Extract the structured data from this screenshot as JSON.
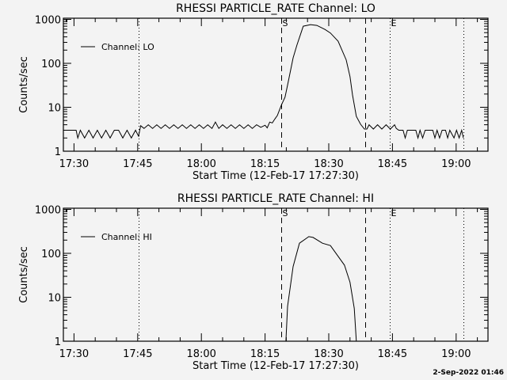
{
  "timestamp": "2-Sep-2022 01:46",
  "chart_data": [
    {
      "type": "line",
      "title": "RHESSI PARTICLE_RATE Channel: LO",
      "xlabel": "Start Time (12-Feb-17 17:27:30)",
      "ylabel": "Counts/sec",
      "x_units": "minutes since 17:27:30",
      "xlim": [
        0,
        100
      ],
      "ylim": [
        1,
        1100
      ],
      "yscale": "log",
      "xtick_labels": [
        "17:30",
        "17:45",
        "18:00",
        "18:15",
        "18:30",
        "18:45",
        "19:00"
      ],
      "xtick_values": [
        2.5,
        17.5,
        32.5,
        47.5,
        62.5,
        77.5,
        92.5
      ],
      "ytick_labels": [
        "1",
        "10",
        "100",
        "1000"
      ],
      "ytick_values": [
        1,
        10,
        100,
        1000
      ],
      "legend": {
        "label": "Channel: LO",
        "placement": "top-left"
      },
      "markers": [
        {
          "t": 17.7,
          "style": "dotted",
          "label": ""
        },
        {
          "t": 51.3,
          "style": "dashed",
          "label": "S"
        },
        {
          "t": 71.1,
          "style": "dashed",
          "label": ""
        },
        {
          "t": 76.9,
          "style": "dotted",
          "label": "E"
        },
        {
          "t": 94.2,
          "style": "dotted",
          "label": ""
        }
      ],
      "series": [
        {
          "name": "Channel: LO",
          "points": [
            [
              0,
              3
            ],
            [
              1,
              3
            ],
            [
              2,
              3
            ],
            [
              3,
              3
            ],
            [
              3.4,
              2
            ],
            [
              4,
              3
            ],
            [
              5,
              2
            ],
            [
              6,
              3
            ],
            [
              7,
              2
            ],
            [
              8,
              3
            ],
            [
              9,
              2
            ],
            [
              10,
              3
            ],
            [
              11,
              2
            ],
            [
              12,
              3
            ],
            [
              13,
              3
            ],
            [
              14,
              2
            ],
            [
              15,
              3
            ],
            [
              16,
              2
            ],
            [
              17,
              3
            ],
            [
              17.7,
              2.2
            ],
            [
              18.2,
              3.8
            ],
            [
              19,
              3.3
            ],
            [
              20,
              4
            ],
            [
              21,
              3.3
            ],
            [
              22,
              4
            ],
            [
              23,
              3.3
            ],
            [
              24,
              4
            ],
            [
              25,
              3.3
            ],
            [
              26,
              4
            ],
            [
              27,
              3.3
            ],
            [
              28,
              4
            ],
            [
              29,
              3.3
            ],
            [
              30,
              4
            ],
            [
              31,
              3.3
            ],
            [
              32,
              4
            ],
            [
              33,
              3.3
            ],
            [
              34,
              4
            ],
            [
              35,
              3.3
            ],
            [
              35.8,
              4.6
            ],
            [
              36.6,
              3.3
            ],
            [
              37.5,
              4
            ],
            [
              38.5,
              3.3
            ],
            [
              39.5,
              4
            ],
            [
              40.5,
              3.3
            ],
            [
              41.5,
              4
            ],
            [
              42.5,
              3.3
            ],
            [
              43.5,
              4
            ],
            [
              44.5,
              3.3
            ],
            [
              45.5,
              4
            ],
            [
              46.5,
              3.5
            ],
            [
              47.5,
              3.9
            ],
            [
              48,
              3.4
            ],
            [
              48.6,
              4.6
            ],
            [
              49.2,
              4.4
            ],
            [
              49.8,
              5.4
            ],
            [
              50.4,
              6.5
            ],
            [
              51.3,
              11
            ],
            [
              52.2,
              17
            ],
            [
              52.8,
              32
            ],
            [
              54.1,
              133
            ],
            [
              55.0,
              260
            ],
            [
              56.5,
              700
            ],
            [
              58.2,
              760
            ],
            [
              59.7,
              730
            ],
            [
              61.6,
              590
            ],
            [
              62.9,
              490
            ],
            [
              64.7,
              320
            ],
            [
              66.6,
              120
            ],
            [
              67.5,
              50
            ],
            [
              68.1,
              19
            ],
            [
              69.0,
              6.2
            ],
            [
              70.0,
              4.1
            ],
            [
              70.9,
              3.2
            ],
            [
              71.5,
              3.2
            ],
            [
              72,
              4
            ],
            [
              73,
              3.2
            ],
            [
              74,
              4
            ],
            [
              75,
              3.2
            ],
            [
              76,
              4
            ],
            [
              77,
              3.2
            ],
            [
              78,
              4
            ],
            [
              78.4,
              3.3
            ],
            [
              79,
              3
            ],
            [
              80,
              3
            ],
            [
              80.5,
              2
            ],
            [
              81,
              3
            ],
            [
              83,
              3
            ],
            [
              83.5,
              2
            ],
            [
              84,
              3
            ],
            [
              84.6,
              2
            ],
            [
              85.2,
              3
            ],
            [
              87,
              3
            ],
            [
              87.5,
              2
            ],
            [
              88,
              3
            ],
            [
              88.6,
              2
            ],
            [
              89.2,
              3
            ],
            [
              90,
              3
            ],
            [
              90.5,
              2
            ],
            [
              91,
              3
            ],
            [
              92,
              2
            ],
            [
              92.6,
              3
            ],
            [
              93.2,
              2
            ],
            [
              93.8,
              3
            ],
            [
              94.2,
              2
            ]
          ]
        }
      ]
    },
    {
      "type": "line",
      "title": "RHESSI PARTICLE_RATE Channel: HI",
      "xlabel": "Start Time (12-Feb-17 17:27:30)",
      "ylabel": "Counts/sec",
      "x_units": "minutes since 17:27:30",
      "xlim": [
        0,
        100
      ],
      "ylim": [
        1,
        1100
      ],
      "yscale": "log",
      "xtick_labels": [
        "17:30",
        "17:45",
        "18:00",
        "18:15",
        "18:30",
        "18:45",
        "19:00"
      ],
      "xtick_values": [
        2.5,
        17.5,
        32.5,
        47.5,
        62.5,
        77.5,
        92.5
      ],
      "ytick_labels": [
        "1",
        "10",
        "100",
        "1000"
      ],
      "ytick_values": [
        1,
        10,
        100,
        1000
      ],
      "legend": {
        "label": "Channel: HI",
        "placement": "top-left"
      },
      "markers": [
        {
          "t": 17.7,
          "style": "dotted",
          "label": ""
        },
        {
          "t": 51.3,
          "style": "dashed",
          "label": "S"
        },
        {
          "t": 71.1,
          "style": "dashed",
          "label": ""
        },
        {
          "t": 76.9,
          "style": "dotted",
          "label": "E"
        },
        {
          "t": 94.2,
          "style": "dotted",
          "label": ""
        }
      ],
      "series": [
        {
          "name": "Channel: HI",
          "points": [
            [
              52.4,
              1
            ],
            [
              52.8,
              6.2
            ],
            [
              54.1,
              50
            ],
            [
              55.6,
              170
            ],
            [
              57.8,
              240
            ],
            [
              58.8,
              230
            ],
            [
              61.0,
              170
            ],
            [
              62.9,
              150
            ],
            [
              66.2,
              54
            ],
            [
              67.5,
              22
            ],
            [
              68.5,
              5.6
            ],
            [
              69.0,
              1
            ]
          ]
        }
      ]
    }
  ]
}
